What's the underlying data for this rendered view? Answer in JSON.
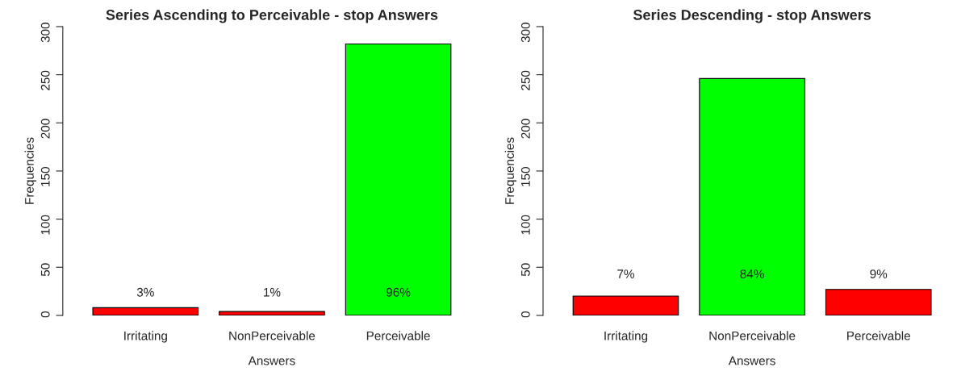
{
  "chart_data": [
    {
      "type": "bar",
      "title": "Series Ascending to Perceivable - stop Answers",
      "xlabel": "Answers",
      "ylabel": "Frequencies",
      "categories": [
        "Irritating",
        "NonPerceivable",
        "Perceivable"
      ],
      "values": [
        8,
        4,
        282
      ],
      "colors": [
        "#ff0000",
        "#ff0000",
        "#00ff00"
      ],
      "annotations": [
        "3%",
        "1%",
        "96%"
      ],
      "ylim": [
        0,
        300
      ],
      "yticks": [
        0,
        50,
        100,
        150,
        200,
        250,
        300
      ],
      "grid": false,
      "legend": false
    },
    {
      "type": "bar",
      "title": "Series Descending - stop Answers",
      "xlabel": "Answers",
      "ylabel": "Frequencies",
      "categories": [
        "Irritating",
        "NonPerceivable",
        "Perceivable"
      ],
      "values": [
        20,
        246,
        27
      ],
      "colors": [
        "#ff0000",
        "#00ff00",
        "#ff0000"
      ],
      "annotations": [
        "7%",
        "84%",
        "9%"
      ],
      "ylim": [
        0,
        300
      ],
      "yticks": [
        0,
        50,
        100,
        150,
        200,
        250,
        300
      ],
      "grid": false,
      "legend": false
    }
  ]
}
